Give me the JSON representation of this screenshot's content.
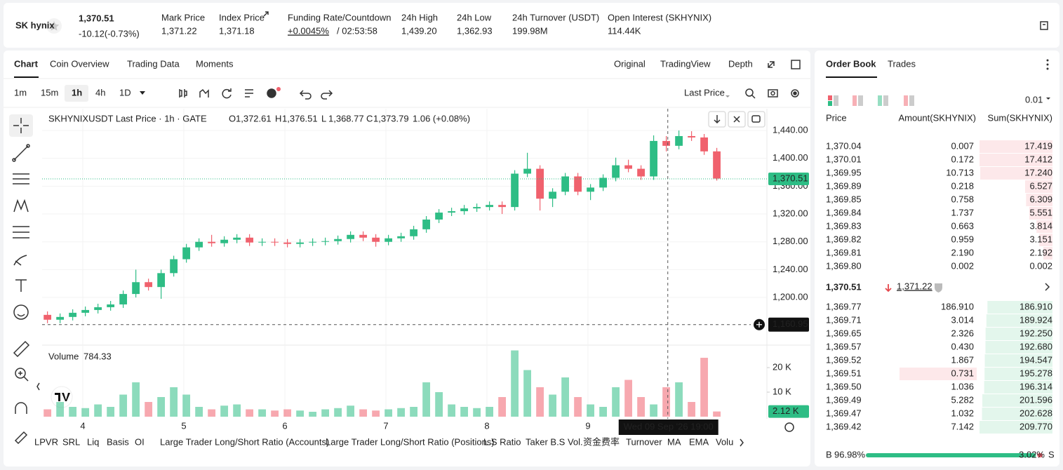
{
  "header": {
    "logo": "SK hynix",
    "last_price": "1,370.51",
    "change": "-10.12(-0.73%)",
    "stats": [
      {
        "label": "Mark Price",
        "value": "1,371.22"
      },
      {
        "label": "Index Price",
        "value": "1,371.18"
      },
      {
        "label": "Funding Rate/Countdown",
        "value": "+0.0045%",
        "extra": "/ 02:53:58"
      },
      {
        "label": "24h High",
        "value": "1,439.20"
      },
      {
        "label": "24h Low",
        "value": "1,362.93"
      },
      {
        "label": "24h Turnover (USDT)",
        "value": "199.98M"
      },
      {
        "label": "Open Interest (SKHYNIX)",
        "value": "114.44K"
      }
    ]
  },
  "chart_tabs": [
    "Chart",
    "Coin Overview",
    "Trading Data",
    "Moments"
  ],
  "view_tabs": [
    "Original",
    "TradingView",
    "Depth"
  ],
  "intervals": [
    "1m",
    "15m",
    "1h",
    "4h",
    "1D"
  ],
  "price_type": "Last Price",
  "chart_data": {
    "type": "candlestick",
    "title": "SKHYNIXUSDT Last Price · 1h · GATE",
    "ohlc_labels": [
      "O",
      "H",
      "L",
      "C"
    ],
    "ohlc_values": [
      "1,372.61",
      "1,376.51",
      "1,368.77",
      "1,373.79"
    ],
    "change": "1.06 (+0.08%)",
    "x": [
      3.65,
      3.775,
      3.9,
      4.025,
      4.15,
      4.275,
      4.4,
      4.525,
      4.65,
      4.775,
      4.9,
      5.025,
      5.15,
      5.275,
      5.4,
      5.525,
      5.65,
      5.775,
      5.9,
      6.025,
      6.15,
      6.275,
      6.4,
      6.525,
      6.65,
      6.775,
      6.9,
      7.025,
      7.15,
      7.275,
      7.4,
      7.525,
      7.65,
      7.775,
      7.9,
      8.025,
      8.15,
      8.275,
      8.4,
      8.525,
      8.65,
      8.775,
      8.9,
      9.025,
      9.15,
      9.275,
      9.4,
      9.525,
      9.65,
      9.775,
      9.9,
      10.025,
      10.15,
      10.275
    ],
    "open": [
      1175,
      1168,
      1172,
      1178,
      1182,
      1186,
      1190,
      1205,
      1222,
      1215,
      1235,
      1255,
      1272,
      1280,
      1278,
      1283,
      1286,
      1279,
      1280,
      1279,
      1277,
      1279,
      1280,
      1281,
      1284,
      1290,
      1286,
      1280,
      1285,
      1288,
      1298,
      1312,
      1322,
      1324,
      1328,
      1330,
      1333,
      1330,
      1378,
      1385,
      1342,
      1352,
      1374,
      1352,
      1358,
      1372,
      1390,
      1385,
      1374,
      1425,
      1418,
      1432,
      1430,
      1410
    ],
    "high": [
      1180,
      1177,
      1183,
      1187,
      1191,
      1195,
      1210,
      1240,
      1227,
      1240,
      1260,
      1277,
      1285,
      1290,
      1288,
      1291,
      1291,
      1285,
      1285,
      1284,
      1284,
      1285,
      1286,
      1289,
      1295,
      1295,
      1291,
      1290,
      1293,
      1303,
      1317,
      1327,
      1329,
      1333,
      1335,
      1338,
      1338,
      1383,
      1408,
      1390,
      1357,
      1379,
      1379,
      1363,
      1377,
      1401,
      1398,
      1390,
      1433,
      1432,
      1440,
      1439,
      1435,
      1415
    ],
    "low": [
      1163,
      1163,
      1167,
      1173,
      1177,
      1181,
      1185,
      1200,
      1210,
      1198,
      1230,
      1250,
      1267,
      1273,
      1273,
      1278,
      1274,
      1274,
      1274,
      1272,
      1272,
      1274,
      1275,
      1276,
      1279,
      1281,
      1273,
      1275,
      1280,
      1283,
      1293,
      1307,
      1317,
      1319,
      1323,
      1325,
      1320,
      1325,
      1373,
      1325,
      1330,
      1347,
      1347,
      1340,
      1353,
      1367,
      1380,
      1369,
      1369,
      1410,
      1413,
      1425,
      1405,
      1368
    ],
    "close": [
      1168,
      1172,
      1178,
      1182,
      1186,
      1190,
      1205,
      1222,
      1215,
      1235,
      1255,
      1272,
      1280,
      1278,
      1283,
      1286,
      1279,
      1280,
      1279,
      1277,
      1279,
      1280,
      1281,
      1284,
      1290,
      1286,
      1280,
      1285,
      1288,
      1298,
      1312,
      1322,
      1324,
      1328,
      1330,
      1333,
      1330,
      1378,
      1385,
      1342,
      1352,
      1374,
      1352,
      1358,
      1372,
      1390,
      1385,
      1374,
      1425,
      1418,
      1432,
      1430,
      1410,
      1371
    ],
    "xlim": [
      3.597,
      10.771
    ],
    "xticks": [
      4,
      5,
      6,
      7,
      8,
      9
    ],
    "ylim": [
      1133.5,
      1471.3
    ],
    "yticks": [
      {
        "value": 1200,
        "label": "1,200.00"
      },
      {
        "value": 1240,
        "label": "1,240.00"
      },
      {
        "value": 1280,
        "label": "1,280.00"
      },
      {
        "value": 1320,
        "label": "1,320.00"
      },
      {
        "value": 1360,
        "label": "1,360.00"
      },
      {
        "value": 1400,
        "label": "1,400.00"
      },
      {
        "value": 1440,
        "label": "1,440.00"
      }
    ],
    "up_color": "#2ebd85",
    "down_color": "#f0616d",
    "grid": true,
    "last_price": {
      "value": 1370.51,
      "label": "1,370.51"
    },
    "crosshair": {
      "x": 9.79,
      "price": {
        "value": 1160.95,
        "label": "1,160.95"
      },
      "label": "Wed 09 Sep '26   19:00"
    },
    "volume": {
      "title": "Volume",
      "current": "784.33",
      "values": [
        3000,
        6000,
        4000,
        3500,
        5000,
        4000,
        9000,
        14000,
        6000,
        8000,
        12000,
        9000,
        4000,
        3000,
        4500,
        5000,
        3000,
        3000,
        2500,
        3000,
        2500,
        2000,
        3000,
        3500,
        4500,
        3000,
        2500,
        3000,
        3500,
        4000,
        14000,
        10000,
        5000,
        4000,
        3500,
        4000,
        8000,
        27000,
        19000,
        12000,
        9000,
        16000,
        8000,
        5000,
        4000,
        12000,
        15000,
        8000,
        5000,
        12000,
        14000,
        6000,
        24000,
        2120
      ],
      "ylim": [
        0,
        28300
      ],
      "yticks": [
        {
          "value": 10000,
          "label": "10 K"
        },
        {
          "value": 20000,
          "label": "20 K"
        }
      ],
      "last": {
        "value": 2120,
        "label": "2.12 K"
      }
    }
  },
  "indicators": [
    "LPVR",
    "SRL",
    "Liq",
    "Basis",
    "OI",
    "Large Trader Long/Short Ratio (Accounts)",
    "Large Trader Long/Short Ratio (Positions)",
    "L.S Ratio",
    "Taker B.S Vol.",
    "资金费率",
    "Turnover",
    "MA",
    "EMA",
    "Volu"
  ],
  "order_book": {
    "tabs": [
      "Order Book",
      "Trades"
    ],
    "precision": "0.01",
    "columns": [
      "Price",
      "Amount(SKHYNIX)",
      "Sum(SKHYNIX)"
    ],
    "asks": [
      [
        "1,370.04",
        "0.007",
        "17.419"
      ],
      [
        "1,370.01",
        "0.172",
        "17.412"
      ],
      [
        "1,369.95",
        "10.713",
        "17.240"
      ],
      [
        "1,369.89",
        "0.218",
        "6.527"
      ],
      [
        "1,369.85",
        "0.758",
        "6.309"
      ],
      [
        "1,369.84",
        "1.737",
        "5.551"
      ],
      [
        "1,369.83",
        "0.663",
        "3.814"
      ],
      [
        "1,369.82",
        "0.959",
        "3.151"
      ],
      [
        "1,369.81",
        "2.190",
        "2.192"
      ],
      [
        "1,369.80",
        "0.002",
        "0.002"
      ]
    ],
    "mid_price": "1,370.51",
    "mark_price": "1,371.22",
    "bids": [
      [
        "1,369.77",
        "186.910",
        "186.910"
      ],
      [
        "1,369.71",
        "3.014",
        "189.924"
      ],
      [
        "1,369.65",
        "2.326",
        "192.250"
      ],
      [
        "1,369.57",
        "0.430",
        "192.680"
      ],
      [
        "1,369.52",
        "1.867",
        "194.547"
      ],
      [
        "1,369.51",
        "0.731",
        "195.278"
      ],
      [
        "1,369.50",
        "1.036",
        "196.314"
      ],
      [
        "1,369.49",
        "5.282",
        "201.596"
      ],
      [
        "1,369.47",
        "1.032",
        "202.628"
      ],
      [
        "1,369.42",
        "7.142",
        "209.770"
      ]
    ],
    "buy_label": "B",
    "buy_ratio": "96.98%",
    "sell_ratio": "3.02%",
    "sell_label": "S"
  }
}
